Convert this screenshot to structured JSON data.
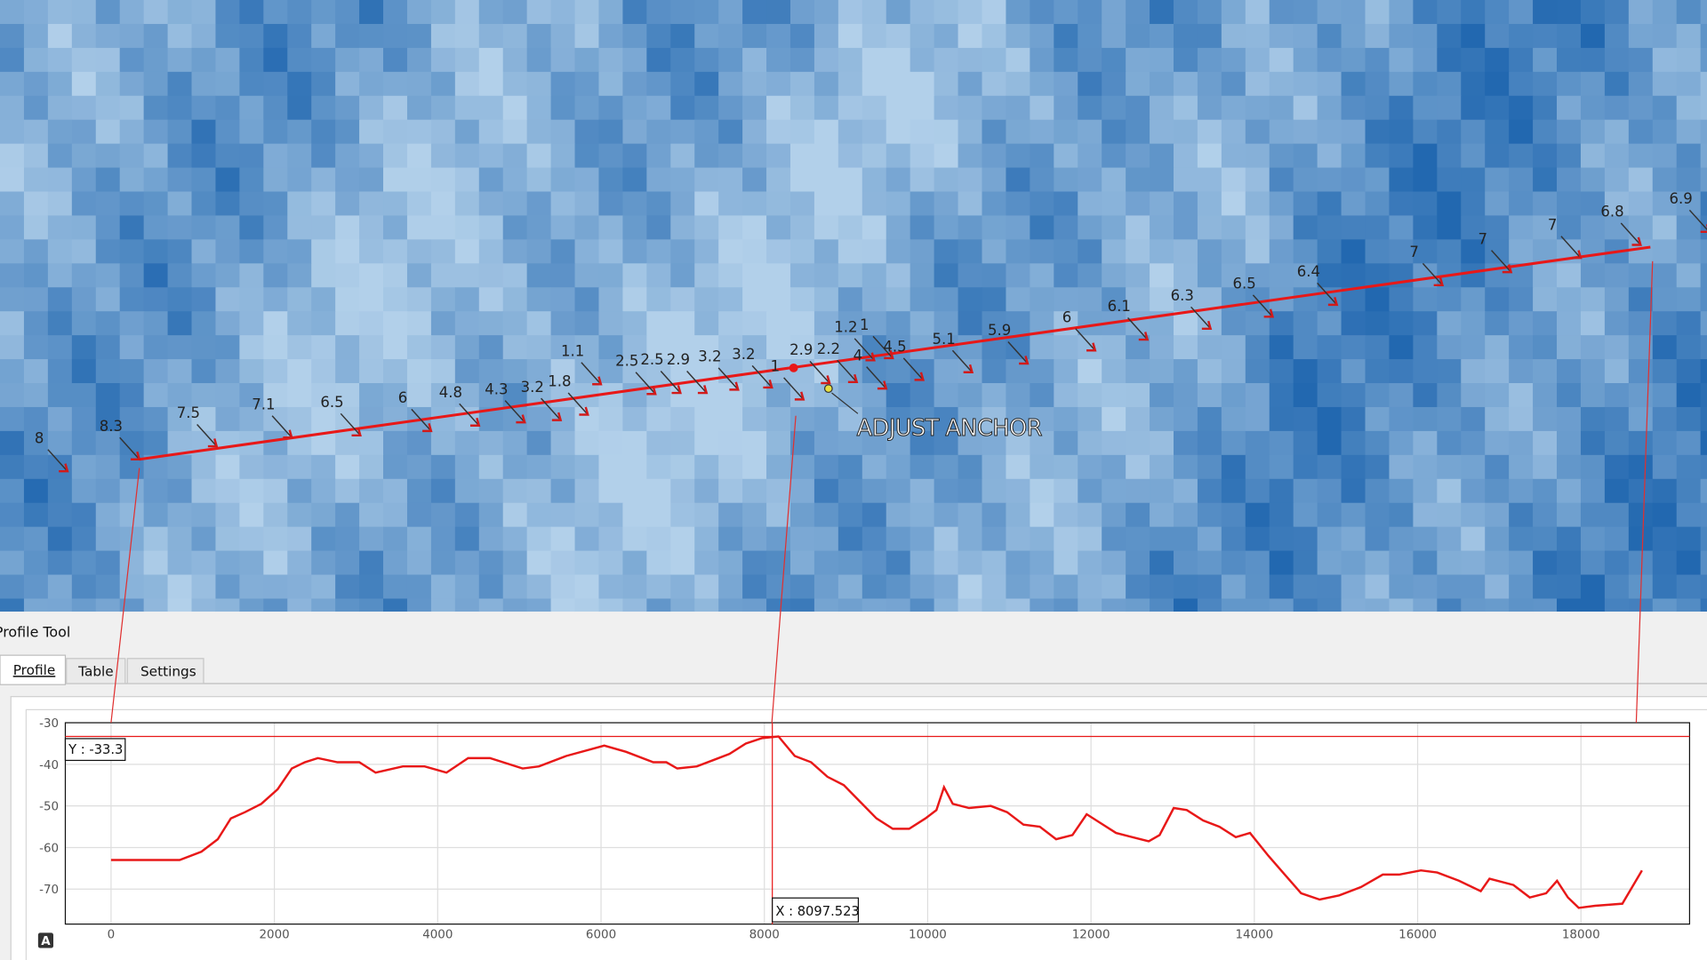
{
  "map": {
    "labels": [
      "8",
      "8.3",
      "7.5",
      "7.1",
      "6.5",
      "6",
      "4.8",
      "4.3",
      "3.2",
      "1.8",
      "1.1",
      "2.5",
      "2.5",
      "2.9",
      "3.2",
      "3.2",
      "1",
      "2.9",
      "2.2",
      "1.2",
      "1",
      "4",
      "4.5",
      "5.1",
      "5.9",
      "6",
      "6.1",
      "6.3",
      "6.5",
      "6.4",
      "7",
      "7",
      "7",
      "6.8",
      "6.9"
    ],
    "anchor_label": "ADJUST ANCHOR"
  },
  "panel": {
    "title": "Profile Tool",
    "tabs": [
      "Profile",
      "Table",
      "Settings"
    ],
    "corner_icon": "A"
  },
  "chart_data": {
    "type": "line",
    "x": [
      0,
      840,
      1107,
      1307,
      1467,
      1640,
      1840,
      2040,
      2213,
      2373,
      2533,
      2773,
      3040,
      3240,
      3573,
      3840,
      4107,
      4373,
      4640,
      5040,
      5240,
      5573,
      6040,
      6307,
      6640,
      6800,
      6933,
      7173,
      7373,
      7573,
      7773,
      7973,
      8173,
      8373,
      8573,
      8773,
      8973,
      9173,
      9373,
      9573,
      9773,
      9973,
      10107,
      10200,
      10307,
      10507,
      10773,
      10973,
      11173,
      11373,
      11573,
      11773,
      11947,
      12107,
      12307,
      12507,
      12707,
      12840,
      13013,
      13173,
      13373,
      13573,
      13773,
      13947,
      14173,
      14373,
      14573,
      14800,
      15040,
      15307,
      15573,
      15773,
      16040,
      16240,
      16507,
      16773,
      16880,
      17173,
      17373,
      17573,
      17707,
      17840,
      17973,
      18173,
      18507,
      18747
    ],
    "series": [
      {
        "color": "#e81818",
        "values": [
          -63,
          -63,
          -61,
          -58,
          -53,
          -51.5,
          -49.5,
          -46,
          -41,
          -39.5,
          -38.5,
          -39.5,
          -39.5,
          -42,
          -40.5,
          -40.5,
          -42,
          -38.5,
          -38.5,
          -41,
          -40.5,
          -38,
          -35.5,
          -37,
          -39.5,
          -39.5,
          -41,
          -40.5,
          -39,
          -37.5,
          -35,
          -33.7,
          -33.3,
          -38,
          -39.5,
          -43,
          -45,
          -49,
          -53,
          -55.5,
          -55.5,
          -53,
          -51,
          -45.5,
          -49.5,
          -50.5,
          -50,
          -51.5,
          -54.5,
          -55,
          -58,
          -57,
          -52,
          -54,
          -56.5,
          -57.5,
          -58.5,
          -57,
          -50.5,
          -51,
          -53.5,
          -55,
          -57.5,
          -56.5,
          -62,
          -66.5,
          -71,
          -72.5,
          -71.5,
          -69.5,
          -66.5,
          -66.5,
          -65.5,
          -66,
          -68,
          -70.5,
          -67.5,
          -69,
          -72,
          -71,
          -68,
          -72,
          -74.5,
          -74,
          -73.5,
          -65.5
        ]
      }
    ],
    "xlim": [
      -560,
      19330
    ],
    "ylim": [
      -78.4,
      -30
    ],
    "xticks": [
      0,
      2000,
      4000,
      6000,
      8000,
      10000,
      12000,
      14000,
      16000,
      18000
    ],
    "yticks": [
      -30,
      -40,
      -50,
      -60,
      -70
    ],
    "grid": true,
    "cursor": {
      "x": {
        "value": 8097.523,
        "label": "X : 8097.523"
      },
      "y": {
        "value": -33.3,
        "label": "Y : -33.3"
      }
    }
  }
}
